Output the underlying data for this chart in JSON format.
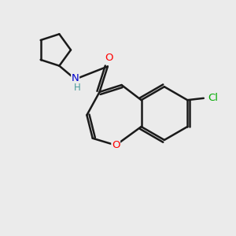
{
  "background_color": "#ebebeb",
  "bond_color": "#1a1a1a",
  "bond_width": 1.8,
  "atom_colors": {
    "O": "#ff0000",
    "N": "#0000cc",
    "Cl": "#00aa00",
    "H": "#4a9a9a"
  },
  "figsize": [
    3.0,
    3.0
  ],
  "dpi": 100,
  "xlim": [
    0,
    10
  ],
  "ylim": [
    0,
    10
  ]
}
